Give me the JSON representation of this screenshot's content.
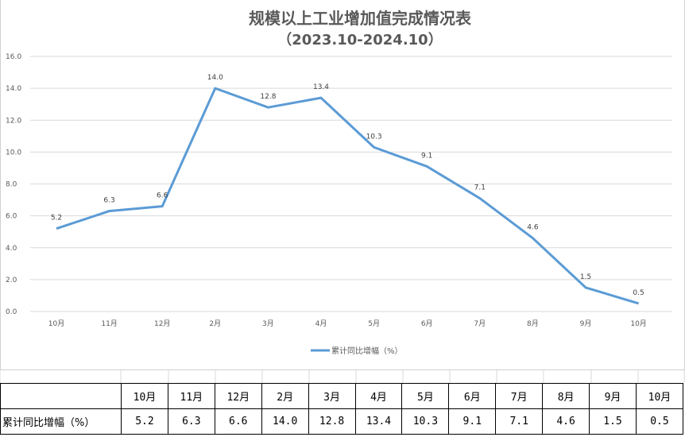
{
  "chart_data": {
    "type": "line",
    "title": "规模以上工业增加值完成情况表",
    "subtitle": "（2023.10-2024.10）",
    "categories": [
      "10月",
      "11月",
      "12月",
      "2月",
      "3月",
      "4月",
      "5月",
      "6月",
      "7月",
      "8月",
      "9月",
      "10月"
    ],
    "series": [
      {
        "name": "累计同比增幅（%）",
        "values": [
          5.2,
          6.3,
          6.6,
          14.0,
          12.8,
          13.4,
          10.3,
          9.1,
          7.1,
          4.6,
          1.5,
          0.5
        ],
        "color": "#5b9bd5"
      }
    ],
    "yticks": [
      "0.0",
      "2.0",
      "4.0",
      "6.0",
      "8.0",
      "10.0",
      "12.0",
      "14.0",
      "16.0"
    ],
    "ylim": [
      0,
      16
    ],
    "grid": true,
    "legend": "bottom",
    "data_labels": true
  },
  "table": {
    "row_label": "累计同比增幅（%）",
    "headers": [
      "10月",
      "11月",
      "12月",
      "2月",
      "3月",
      "4月",
      "5月",
      "6月",
      "7月",
      "8月",
      "9月",
      "10月"
    ],
    "values": [
      "5.2",
      "6.3",
      "6.6",
      "14.0",
      "12.8",
      "13.4",
      "10.3",
      "9.1",
      "7.1",
      "4.6",
      "1.5",
      "0.5"
    ]
  }
}
